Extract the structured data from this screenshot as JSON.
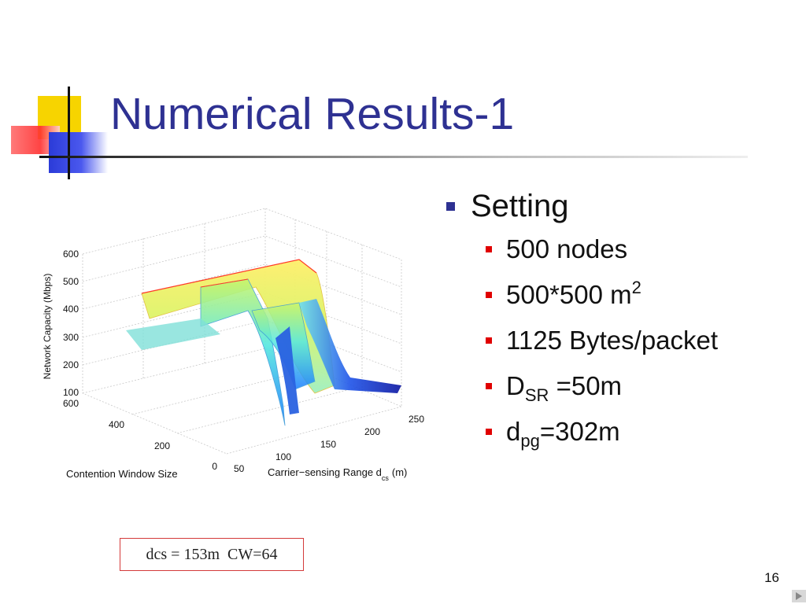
{
  "slide": {
    "title": "Numerical Results-1",
    "page_number": "16"
  },
  "bullets": {
    "heading": "Setting",
    "items": [
      {
        "text": "500 nodes"
      },
      {
        "main": "500*500 m",
        "sup": "2"
      },
      {
        "text": "1125 Bytes/packet"
      },
      {
        "main": "D",
        "sub": "SR",
        "after": " =50m"
      },
      {
        "main": "d",
        "sub": "pg",
        "after": "=302m"
      }
    ]
  },
  "annotation": "dcs = 153m  CW=64",
  "chart_data": {
    "type": "surface3d",
    "zlabel": "Network Capacity (Mbps)",
    "ylabel": "Contention Window Size",
    "xlabel_main": "Carrier−sensing Range d",
    "xlabel_sub": "cs",
    "xlabel_unit": "(m)",
    "z_ticks": [
      "600",
      "500",
      "400",
      "300",
      "200",
      "100"
    ],
    "y_ticks": [
      "600",
      "400",
      "200",
      "0"
    ],
    "x_ticks": [
      "50",
      "100",
      "150",
      "200",
      "250"
    ],
    "zlim": [
      100,
      600
    ],
    "ylim": [
      0,
      600
    ],
    "xlim": [
      50,
      250
    ]
  },
  "colors": {
    "title": "#2e3192",
    "bullet_level1": "#2e3192",
    "bullet_level2": "#e00000",
    "annotation_border": "#d43a3a"
  },
  "icons": {
    "nav": "play-triangle-icon"
  }
}
